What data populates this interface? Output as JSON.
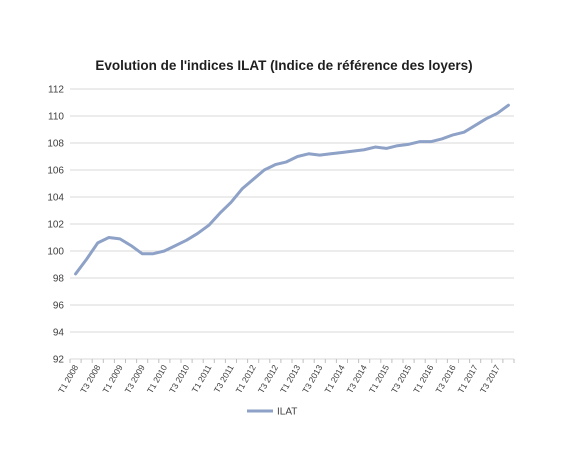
{
  "chart_data": {
    "type": "line",
    "title": "Evolution de l'indices ILAT (Indice de référence des loyers)",
    "xlabel": "",
    "ylabel": "",
    "ylim": [
      92,
      112
    ],
    "yticks": [
      92,
      94,
      96,
      98,
      100,
      102,
      104,
      106,
      108,
      110,
      112
    ],
    "grid": true,
    "legend": "bottom",
    "categories": [
      "T1 2008",
      "T2 2008",
      "T3 2008",
      "T4 2008",
      "T1 2009",
      "T2 2009",
      "T3 2009",
      "T4 2009",
      "T1 2010",
      "T2 2010",
      "T3 2010",
      "T4 2010",
      "T1 2011",
      "T2 2011",
      "T3 2011",
      "T4 2011",
      "T1 2012",
      "T2 2012",
      "T3 2012",
      "T4 2012",
      "T1 2013",
      "T2 2013",
      "T3 2013",
      "T4 2013",
      "T1 2014",
      "T2 2014",
      "T3 2014",
      "T4 2014",
      "T1 2015",
      "T2 2015",
      "T3 2015",
      "T4 2015",
      "T1 2016",
      "T2 2016",
      "T3 2016",
      "T4 2016",
      "T1 2017",
      "T2 2017",
      "T3 2017",
      "T4 2017"
    ],
    "visible_tick_labels": [
      "T1 2008",
      "T3 2008",
      "T1 2009",
      "T3 2009",
      "T1 2010",
      "T3 2010",
      "T1 2011",
      "T3 2011",
      "T1 2012",
      "T3 2012",
      "T1 2013",
      "T3 2013",
      "T1 2014",
      "T3 2014",
      "T1 2015",
      "T3 2015",
      "T1 2016",
      "T3 2016",
      "T1 2017",
      "T3 2017"
    ],
    "series": [
      {
        "name": "ILAT",
        "color": "#8ea1c7",
        "values": [
          98.3,
          99.4,
          100.6,
          101.0,
          100.9,
          100.4,
          99.8,
          99.8,
          100.0,
          100.4,
          100.8,
          101.3,
          101.9,
          102.8,
          103.6,
          104.6,
          105.3,
          106.0,
          106.4,
          106.6,
          107.0,
          107.2,
          107.1,
          107.2,
          107.3,
          107.4,
          107.5,
          107.7,
          107.6,
          107.8,
          107.9,
          108.1,
          108.1,
          108.3,
          108.6,
          108.8,
          109.3,
          109.8,
          110.2,
          110.8
        ]
      }
    ]
  }
}
